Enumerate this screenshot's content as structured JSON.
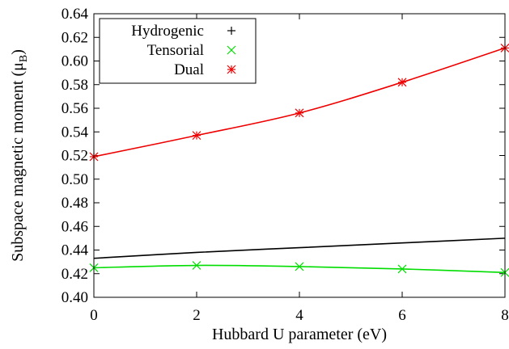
{
  "chart_data": {
    "type": "line",
    "xlabel": "Hubbard U parameter (eV)",
    "ylabel": "Subspace magnetic moment (μ",
    "ylabel_sub": "B",
    "ylabel_close": ")",
    "xlim": [
      0,
      8
    ],
    "ylim": [
      0.4,
      0.64
    ],
    "xticks": [
      0,
      2,
      4,
      6,
      8
    ],
    "xtick_labels": [
      "0",
      "2",
      "4",
      "6",
      "8"
    ],
    "yticks": [
      0.4,
      0.42,
      0.44,
      0.46,
      0.48,
      0.5,
      0.52,
      0.54,
      0.56,
      0.58,
      0.6,
      0.62,
      0.64
    ],
    "ytick_labels": [
      "0.40",
      "0.42",
      "0.44",
      "0.46",
      "0.48",
      "0.50",
      "0.52",
      "0.54",
      "0.56",
      "0.58",
      "0.60",
      "0.62",
      "0.64"
    ],
    "grid": false,
    "legend_position": "top-left",
    "series": [
      {
        "name": "Hydrogenic",
        "color": "#000000",
        "marker": "plus",
        "x": [
          0,
          2,
          4,
          6,
          8
        ],
        "y": [
          0.433,
          0.438,
          0.442,
          0.446,
          0.45
        ]
      },
      {
        "name": "Tensorial",
        "color": "#00dd00",
        "marker": "cross",
        "x": [
          0,
          2,
          4,
          6,
          8
        ],
        "y": [
          0.425,
          0.427,
          0.426,
          0.424,
          0.421
        ]
      },
      {
        "name": "Dual",
        "color": "#ee0000",
        "marker": "star",
        "x": [
          0,
          2,
          4,
          6,
          8
        ],
        "y": [
          0.519,
          0.537,
          0.556,
          0.582,
          0.611
        ]
      }
    ]
  }
}
